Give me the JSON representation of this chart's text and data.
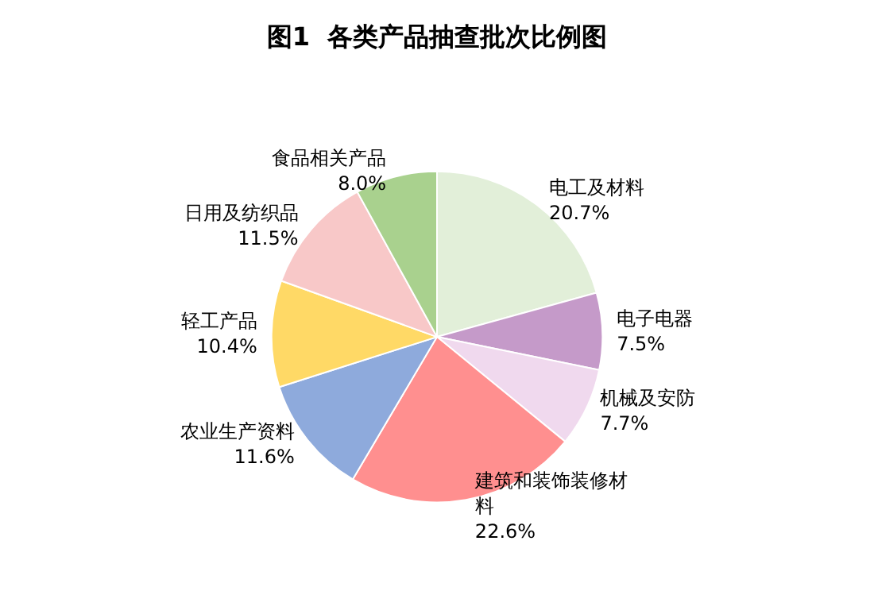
{
  "chart_data": {
    "type": "pie",
    "title": "图1  各类产品抽查批次比例图",
    "categories": [
      "电工及材料",
      "电子电器",
      "机械及安防",
      "建筑和装饰装修材料",
      "农业生产资料",
      "轻工产品",
      "日用及纺织品",
      "食品相关产品"
    ],
    "values": [
      20.7,
      7.5,
      7.7,
      22.6,
      11.6,
      10.4,
      11.5,
      8.0
    ],
    "value_labels": [
      "20.7%",
      "7.5%",
      "7.7%",
      "22.6%",
      "11.6%",
      "10.4%",
      "11.5%",
      "8.0%"
    ],
    "colors": [
      "#e2efd9",
      "#c59ac9",
      "#f0d9ee",
      "#ff8f8f",
      "#8eaadc",
      "#ffd966",
      "#f8c8c8",
      "#a9d18e"
    ],
    "legend": false
  }
}
